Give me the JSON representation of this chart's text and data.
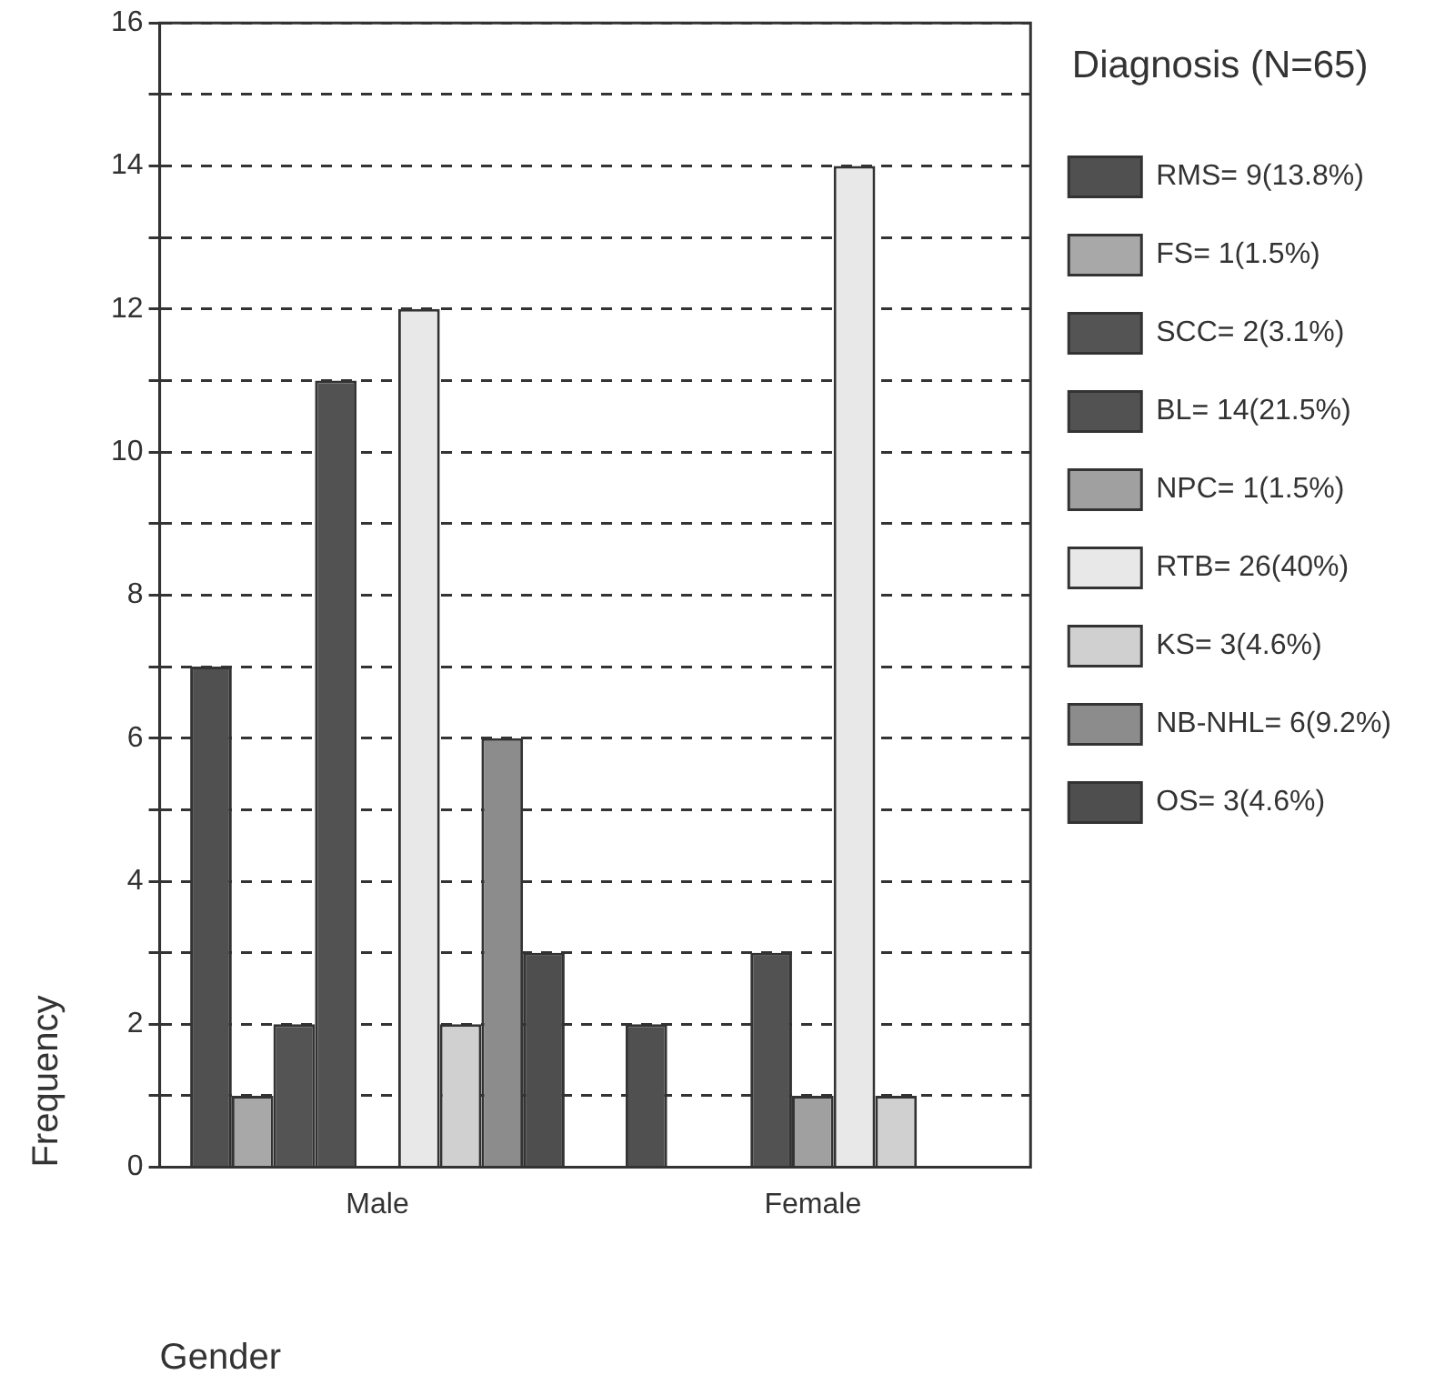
{
  "chart_data": {
    "type": "bar",
    "xlabel": "Gender",
    "ylabel": "Frequency",
    "legend_title": "Diagnosis (N=65)",
    "categories": [
      "Male",
      "Female"
    ],
    "series": [
      {
        "name": "RMS= 9(13.8%)",
        "color": "#505050",
        "values": [
          7,
          2
        ]
      },
      {
        "name": "FS= 1(1.5%)",
        "color": "#a8a8a8",
        "values": [
          1,
          0
        ]
      },
      {
        "name": "SCC= 2(3.1%)",
        "color": "#545454",
        "values": [
          2,
          0
        ]
      },
      {
        "name": "BL= 14(21.5%)",
        "color": "#525252",
        "values": [
          11,
          3
        ]
      },
      {
        "name": "NPC= 1(1.5%)",
        "color": "#a0a0a0",
        "values": [
          0,
          1
        ]
      },
      {
        "name": "RTB= 26(40%)",
        "color": "#e8e8e8",
        "values": [
          12,
          14
        ]
      },
      {
        "name": "KS= 3(4.6%)",
        "color": "#d0d0d0",
        "values": [
          2,
          1
        ]
      },
      {
        "name": "NB-NHL= 6(9.2%)",
        "color": "#8c8c8c",
        "values": [
          6,
          0
        ]
      },
      {
        "name": "OS= 3(4.6%)",
        "color": "#4e4e4e",
        "values": [
          3,
          0
        ]
      }
    ],
    "ylim": [
      0,
      16
    ],
    "yticks": [
      0,
      {
        "value": 1,
        "label": null
      },
      2,
      {
        "value": 3,
        "label": null
      },
      4,
      {
        "value": 5,
        "label": null
      },
      6,
      {
        "value": 7,
        "label": null
      },
      8,
      {
        "value": 9,
        "label": null
      },
      10,
      {
        "value": 11,
        "label": null
      },
      12,
      {
        "value": 13,
        "label": null
      },
      14,
      {
        "value": 15,
        "label": null
      },
      16
    ],
    "grid": "y",
    "legend": "right"
  }
}
